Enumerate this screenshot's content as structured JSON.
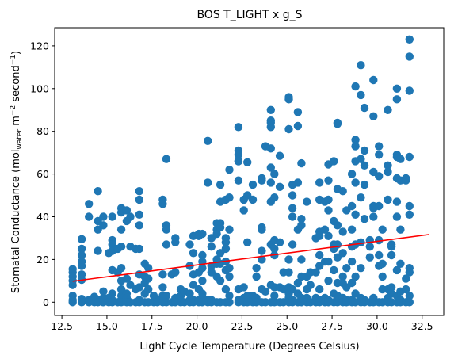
{
  "chart_data": {
    "type": "scatter",
    "title": "BOS T_LIGHT x g_S",
    "xlabel": "Light Cycle Temperature (Degrees Celsius)",
    "ylabel": {
      "prefix": "Stomatal Conductance (mol",
      "sub": "water",
      "mid1": " m",
      "sup1": "−2",
      "mid2": " second",
      "sup2": "−1",
      "suffix": ")"
    },
    "xlim": [
      12.1,
      33.7
    ],
    "ylim": [
      -6.2,
      128.5
    ],
    "x_ticks": [
      12.5,
      15.0,
      17.5,
      20.0,
      22.5,
      25.0,
      27.5,
      30.0,
      32.5
    ],
    "x_tick_labels": [
      "12.5",
      "15.0",
      "17.5",
      "20.0",
      "22.5",
      "25.0",
      "27.5",
      "30.0",
      "32.5"
    ],
    "y_ticks": [
      0,
      20,
      40,
      60,
      80,
      100,
      120
    ],
    "y_tick_labels": [
      "0",
      "20",
      "40",
      "60",
      "80",
      "100",
      "120"
    ],
    "grid": false,
    "colors": {
      "points": "#1f77b4",
      "trend": "#ff0000"
    },
    "trend_line": {
      "x": [
        13.1,
        32.9
      ],
      "y": [
        9.8,
        31.7
      ]
    },
    "points": [
      [
        13.1,
        15.5
      ],
      [
        13.1,
        14
      ],
      [
        13.1,
        12
      ],
      [
        13.1,
        10
      ],
      [
        13.1,
        8
      ],
      [
        13.1,
        3
      ],
      [
        13.1,
        1
      ],
      [
        13.1,
        0
      ],
      [
        13.6,
        29.5
      ],
      [
        13.6,
        25
      ],
      [
        13.6,
        22
      ],
      [
        13.6,
        19
      ],
      [
        13.6,
        17
      ],
      [
        13.6,
        13
      ],
      [
        13.6,
        10.5
      ],
      [
        13.6,
        1.5
      ],
      [
        13.6,
        0
      ],
      [
        14.0,
        46
      ],
      [
        14.0,
        40
      ],
      [
        14.0,
        1
      ],
      [
        14.0,
        0
      ],
      [
        14.3,
        0
      ],
      [
        14.3,
        2.5
      ],
      [
        14.5,
        52
      ],
      [
        14.5,
        38
      ],
      [
        14.5,
        34
      ],
      [
        14.5,
        24
      ],
      [
        14.5,
        1
      ],
      [
        14.5,
        0
      ],
      [
        14.8,
        40
      ],
      [
        14.8,
        36
      ],
      [
        14.8,
        5
      ],
      [
        14.8,
        2
      ],
      [
        14.8,
        0
      ],
      [
        15.1,
        23
      ],
      [
        15.1,
        2
      ],
      [
        15.1,
        0
      ],
      [
        15.3,
        40
      ],
      [
        15.3,
        29
      ],
      [
        15.3,
        27
      ],
      [
        15.3,
        24
      ],
      [
        15.3,
        15
      ],
      [
        15.3,
        4
      ],
      [
        15.3,
        1
      ],
      [
        15.3,
        0
      ],
      [
        15.6,
        25
      ],
      [
        15.6,
        14
      ],
      [
        15.6,
        0
      ],
      [
        15.8,
        44
      ],
      [
        15.8,
        42
      ],
      [
        15.8,
        34
      ],
      [
        15.8,
        26
      ],
      [
        15.8,
        16
      ],
      [
        15.8,
        10
      ],
      [
        15.8,
        6
      ],
      [
        15.8,
        3
      ],
      [
        15.8,
        1
      ],
      [
        15.8,
        0
      ],
      [
        16.1,
        43
      ],
      [
        16.1,
        38
      ],
      [
        16.1,
        11
      ],
      [
        16.1,
        4
      ],
      [
        16.1,
        2
      ],
      [
        16.1,
        0
      ],
      [
        16.3,
        40
      ],
      [
        16.3,
        26
      ],
      [
        16.3,
        8
      ],
      [
        16.3,
        0
      ],
      [
        16.6,
        25
      ],
      [
        16.6,
        6
      ],
      [
        16.6,
        0
      ],
      [
        16.8,
        52
      ],
      [
        16.8,
        48
      ],
      [
        16.8,
        41
      ],
      [
        16.8,
        36
      ],
      [
        16.8,
        25
      ],
      [
        16.8,
        13
      ],
      [
        16.8,
        7
      ],
      [
        16.8,
        1
      ],
      [
        16.8,
        0
      ],
      [
        17.1,
        18
      ],
      [
        17.1,
        12
      ],
      [
        17.1,
        9
      ],
      [
        17.1,
        4
      ],
      [
        17.1,
        0
      ],
      [
        17.3,
        16
      ],
      [
        17.3,
        11
      ],
      [
        17.3,
        6
      ],
      [
        17.3,
        0
      ],
      [
        17.6,
        0
      ],
      [
        17.6,
        3
      ],
      [
        17.8,
        1
      ],
      [
        17.8,
        0
      ],
      [
        18.1,
        48
      ],
      [
        18.1,
        46
      ],
      [
        18.1,
        13
      ],
      [
        18.1,
        7
      ],
      [
        18.1,
        3
      ],
      [
        18.1,
        0
      ],
      [
        18.3,
        67
      ],
      [
        18.3,
        36
      ],
      [
        18.3,
        34
      ],
      [
        18.3,
        27
      ],
      [
        18.3,
        3
      ],
      [
        18.3,
        0
      ],
      [
        18.6,
        13
      ],
      [
        18.6,
        0
      ],
      [
        18.8,
        30
      ],
      [
        18.8,
        28
      ],
      [
        18.8,
        14
      ],
      [
        18.8,
        2
      ],
      [
        18.8,
        0
      ],
      [
        19.1,
        0
      ],
      [
        19.1,
        6
      ],
      [
        19.1,
        3
      ],
      [
        19.3,
        5
      ],
      [
        19.3,
        0
      ],
      [
        19.6,
        27
      ],
      [
        19.6,
        17
      ],
      [
        19.6,
        4
      ],
      [
        19.6,
        1
      ],
      [
        19.6,
        0
      ],
      [
        19.8,
        31
      ],
      [
        19.8,
        23
      ],
      [
        19.8,
        13
      ],
      [
        19.8,
        8
      ],
      [
        19.8,
        1
      ],
      [
        19.8,
        0
      ],
      [
        20.1,
        32
      ],
      [
        20.1,
        31
      ],
      [
        20.1,
        14
      ],
      [
        20.1,
        6
      ],
      [
        20.1,
        1
      ],
      [
        20.1,
        0
      ],
      [
        20.3,
        32
      ],
      [
        20.3,
        22
      ],
      [
        20.3,
        19
      ],
      [
        20.3,
        16
      ],
      [
        20.3,
        10
      ],
      [
        20.3,
        4
      ],
      [
        20.3,
        2
      ],
      [
        20.3,
        0
      ],
      [
        20.6,
        75.5
      ],
      [
        20.6,
        56
      ],
      [
        20.6,
        1
      ],
      [
        20.6,
        0
      ],
      [
        20.8,
        30
      ],
      [
        20.8,
        26
      ],
      [
        20.8,
        17
      ],
      [
        20.8,
        14
      ],
      [
        20.8,
        1
      ],
      [
        20.8,
        0
      ],
      [
        21.1,
        37
      ],
      [
        21.1,
        34
      ],
      [
        21.1,
        32
      ],
      [
        21.1,
        20
      ],
      [
        21.1,
        18
      ],
      [
        21.1,
        12
      ],
      [
        21.1,
        0
      ],
      [
        21.3,
        55
      ],
      [
        21.3,
        47
      ],
      [
        21.3,
        37
      ],
      [
        21.3,
        35
      ],
      [
        21.3,
        23
      ],
      [
        21.3,
        18
      ],
      [
        21.3,
        10
      ],
      [
        21.3,
        0
      ],
      [
        21.6,
        48
      ],
      [
        21.6,
        30
      ],
      [
        21.6,
        28
      ],
      [
        21.6,
        25
      ],
      [
        21.6,
        19
      ],
      [
        21.6,
        15
      ],
      [
        21.6,
        6
      ],
      [
        21.6,
        0
      ],
      [
        21.8,
        62
      ],
      [
        21.8,
        49
      ],
      [
        21.8,
        34
      ],
      [
        21.8,
        16
      ],
      [
        21.8,
        12
      ],
      [
        21.8,
        3
      ],
      [
        21.8,
        0
      ],
      [
        22.3,
        82
      ],
      [
        22.3,
        71
      ],
      [
        22.3,
        69
      ],
      [
        22.3,
        66
      ],
      [
        22.3,
        66
      ],
      [
        22.3,
        57
      ],
      [
        22.3,
        6
      ],
      [
        22.3,
        1
      ],
      [
        22.3,
        0
      ],
      [
        22.6,
        48
      ],
      [
        22.6,
        43
      ],
      [
        22.6,
        7
      ],
      [
        22.6,
        2
      ],
      [
        22.6,
        0
      ],
      [
        22.8,
        65.5
      ],
      [
        22.8,
        50
      ],
      [
        22.8,
        28
      ],
      [
        22.8,
        3
      ],
      [
        22.8,
        0
      ],
      [
        23.1,
        55
      ],
      [
        23.1,
        48
      ],
      [
        23.1,
        3
      ],
      [
        23.1,
        0
      ],
      [
        23.3,
        16
      ],
      [
        23.3,
        12
      ],
      [
        23.3,
        2
      ],
      [
        23.3,
        0
      ],
      [
        23.6,
        58
      ],
      [
        23.6,
        57
      ],
      [
        23.6,
        35
      ],
      [
        23.6,
        34
      ],
      [
        23.6,
        24
      ],
      [
        23.6,
        20
      ],
      [
        23.6,
        6
      ],
      [
        23.6,
        0
      ],
      [
        23.8,
        73
      ],
      [
        23.8,
        5
      ],
      [
        23.8,
        0
      ],
      [
        24.1,
        90
      ],
      [
        24.1,
        85
      ],
      [
        24.1,
        84
      ],
      [
        24.1,
        82
      ],
      [
        24.1,
        72
      ],
      [
        24.1,
        63
      ],
      [
        24.1,
        56
      ],
      [
        24.1,
        47
      ],
      [
        24.1,
        27
      ],
      [
        24.1,
        8
      ],
      [
        24.1,
        0
      ],
      [
        24.3,
        60
      ],
      [
        24.3,
        49
      ],
      [
        24.3,
        29
      ],
      [
        24.3,
        25
      ],
      [
        24.3,
        22
      ],
      [
        24.3,
        7
      ],
      [
        24.3,
        3
      ],
      [
        24.3,
        0
      ],
      [
        24.6,
        68.5
      ],
      [
        24.6,
        54
      ],
      [
        24.6,
        28
      ],
      [
        24.6,
        7
      ],
      [
        24.6,
        0
      ],
      [
        24.8,
        14
      ],
      [
        24.8,
        6
      ],
      [
        24.8,
        0
      ],
      [
        25.1,
        96
      ],
      [
        25.1,
        95
      ],
      [
        25.1,
        81
      ],
      [
        25.1,
        20
      ],
      [
        25.1,
        14
      ],
      [
        25.1,
        7
      ],
      [
        25.1,
        4
      ],
      [
        25.1,
        2
      ],
      [
        25.1,
        0
      ],
      [
        25.3,
        55
      ],
      [
        25.3,
        50
      ],
      [
        25.3,
        44
      ],
      [
        25.3,
        40
      ],
      [
        25.3,
        27
      ],
      [
        25.3,
        6
      ],
      [
        25.3,
        1
      ],
      [
        25.3,
        0
      ],
      [
        25.6,
        89
      ],
      [
        25.6,
        82.5
      ],
      [
        25.6,
        56
      ],
      [
        25.6,
        34
      ],
      [
        25.6,
        9
      ],
      [
        25.6,
        4
      ],
      [
        25.6,
        0
      ],
      [
        25.8,
        65
      ],
      [
        25.8,
        39
      ],
      [
        25.8,
        36
      ],
      [
        25.8,
        20
      ],
      [
        25.8,
        12
      ],
      [
        25.8,
        2
      ],
      [
        25.8,
        0
      ],
      [
        26.1,
        47
      ],
      [
        26.1,
        12
      ],
      [
        26.1,
        6
      ],
      [
        26.1,
        2
      ],
      [
        26.1,
        0
      ],
      [
        26.3,
        14
      ],
      [
        26.3,
        8
      ],
      [
        26.3,
        0
      ],
      [
        26.6,
        30
      ],
      [
        26.6,
        14
      ],
      [
        26.6,
        2
      ],
      [
        26.6,
        0
      ],
      [
        26.8,
        56
      ],
      [
        26.8,
        48
      ],
      [
        26.8,
        33
      ],
      [
        26.8,
        31
      ],
      [
        26.8,
        22
      ],
      [
        26.8,
        17
      ],
      [
        26.8,
        6
      ],
      [
        26.8,
        1
      ],
      [
        26.8,
        0
      ],
      [
        27.1,
        47
      ],
      [
        27.1,
        34
      ],
      [
        27.1,
        19
      ],
      [
        27.1,
        2
      ],
      [
        27.1,
        0
      ],
      [
        27.3,
        64.5
      ],
      [
        27.3,
        57
      ],
      [
        27.3,
        48
      ],
      [
        27.3,
        43
      ],
      [
        27.3,
        31
      ],
      [
        27.3,
        19
      ],
      [
        27.3,
        10
      ],
      [
        27.3,
        1
      ],
      [
        27.3,
        0
      ],
      [
        27.6,
        66
      ],
      [
        27.6,
        38
      ],
      [
        27.6,
        27
      ],
      [
        27.6,
        25
      ],
      [
        27.6,
        15
      ],
      [
        27.6,
        4
      ],
      [
        27.6,
        0
      ],
      [
        27.8,
        84
      ],
      [
        27.8,
        83.5
      ],
      [
        27.8,
        53
      ],
      [
        27.8,
        36
      ],
      [
        27.8,
        27
      ],
      [
        27.8,
        21
      ],
      [
        27.8,
        9
      ],
      [
        27.8,
        3
      ],
      [
        27.8,
        0
      ],
      [
        28.1,
        52
      ],
      [
        28.1,
        33
      ],
      [
        28.1,
        23
      ],
      [
        28.1,
        12
      ],
      [
        28.1,
        9
      ],
      [
        28.1,
        2
      ],
      [
        28.1,
        0
      ],
      [
        28.3,
        43
      ],
      [
        28.3,
        16
      ],
      [
        28.3,
        7
      ],
      [
        28.3,
        1
      ],
      [
        28.3,
        0
      ],
      [
        28.6,
        60
      ],
      [
        28.6,
        45
      ],
      [
        28.6,
        34
      ],
      [
        28.6,
        26
      ],
      [
        28.6,
        19
      ],
      [
        28.6,
        9
      ],
      [
        28.6,
        1
      ],
      [
        28.6,
        0
      ],
      [
        28.8,
        101
      ],
      [
        28.8,
        76
      ],
      [
        28.8,
        73
      ],
      [
        28.8,
        66
      ],
      [
        28.8,
        56
      ],
      [
        28.8,
        41
      ],
      [
        28.8,
        27
      ],
      [
        28.8,
        12
      ],
      [
        28.8,
        4
      ],
      [
        28.8,
        0
      ],
      [
        29.1,
        111
      ],
      [
        29.1,
        97
      ],
      [
        29.1,
        67
      ],
      [
        29.1,
        49
      ],
      [
        29.1,
        28
      ],
      [
        29.1,
        16
      ],
      [
        29.1,
        2
      ],
      [
        29.1,
        0
      ],
      [
        29.3,
        91
      ],
      [
        29.3,
        71
      ],
      [
        29.3,
        64
      ],
      [
        29.3,
        55
      ],
      [
        29.3,
        39
      ],
      [
        29.3,
        1
      ],
      [
        29.3,
        0
      ],
      [
        29.6,
        29
      ],
      [
        29.6,
        26
      ],
      [
        29.6,
        21
      ],
      [
        29.6,
        0
      ],
      [
        29.8,
        104
      ],
      [
        29.8,
        87
      ],
      [
        29.8,
        61
      ],
      [
        29.8,
        45
      ],
      [
        29.8,
        44
      ],
      [
        29.8,
        40
      ],
      [
        29.8,
        2
      ],
      [
        29.8,
        0
      ],
      [
        30.1,
        73
      ],
      [
        30.1,
        69
      ],
      [
        30.1,
        59
      ],
      [
        30.1,
        45
      ],
      [
        30.1,
        29
      ],
      [
        30.1,
        22
      ],
      [
        30.1,
        17
      ],
      [
        30.1,
        0
      ],
      [
        30.3,
        34
      ],
      [
        30.3,
        18
      ],
      [
        30.3,
        12
      ],
      [
        30.3,
        6
      ],
      [
        30.3,
        0
      ],
      [
        30.6,
        90
      ],
      [
        30.6,
        64
      ],
      [
        30.6,
        61
      ],
      [
        30.6,
        48
      ],
      [
        30.6,
        6
      ],
      [
        30.6,
        2
      ],
      [
        30.6,
        0
      ],
      [
        30.8,
        27
      ],
      [
        30.8,
        26
      ],
      [
        30.8,
        22
      ],
      [
        30.8,
        7
      ],
      [
        30.8,
        4
      ],
      [
        30.8,
        0
      ],
      [
        31.1,
        100
      ],
      [
        31.1,
        95
      ],
      [
        31.1,
        69
      ],
      [
        31.1,
        68
      ],
      [
        31.1,
        58
      ],
      [
        31.1,
        47
      ],
      [
        31.1,
        40
      ],
      [
        31.1,
        15
      ],
      [
        31.1,
        3
      ],
      [
        31.1,
        0
      ],
      [
        31.3,
        67
      ],
      [
        31.3,
        57
      ],
      [
        31.3,
        34
      ],
      [
        31.3,
        18
      ],
      [
        31.3,
        5
      ],
      [
        31.3,
        1
      ],
      [
        31.3,
        0
      ],
      [
        31.6,
        58
      ],
      [
        31.6,
        57
      ],
      [
        31.6,
        11
      ],
      [
        31.6,
        6
      ],
      [
        31.6,
        0
      ],
      [
        31.8,
        123
      ],
      [
        31.8,
        115
      ],
      [
        31.8,
        99
      ],
      [
        31.8,
        68
      ],
      [
        31.8,
        45
      ],
      [
        31.8,
        41
      ],
      [
        31.8,
        16
      ],
      [
        31.8,
        14
      ],
      [
        31.8,
        3
      ],
      [
        31.8,
        0
      ]
    ]
  }
}
